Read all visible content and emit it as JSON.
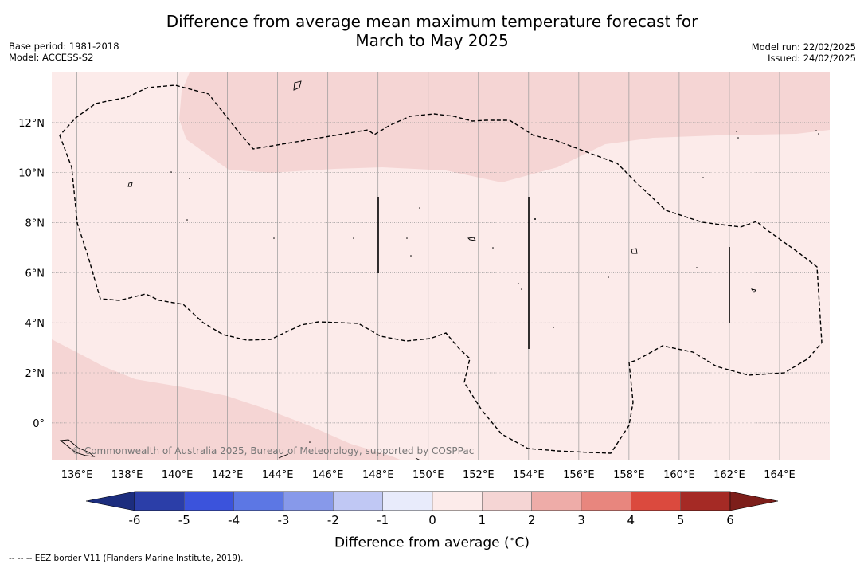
{
  "header": {
    "title_line1": "Difference from average mean maximum temperature forecast for",
    "title_line2": "March to May 2025",
    "base_period": "Base period: 1981-2018",
    "model": "Model: ACCESS-S2",
    "model_run": "Model run: 22/02/2025",
    "issued": "Issued: 24/02/2025"
  },
  "map": {
    "lon_range": [
      135,
      166
    ],
    "lat_range": [
      -1.5,
      14
    ],
    "lon_ticks": [
      "136°E",
      "138°E",
      "140°E",
      "142°E",
      "144°E",
      "146°E",
      "148°E",
      "150°E",
      "152°E",
      "154°E",
      "156°E",
      "158°E",
      "160°E",
      "162°E",
      "164°E"
    ],
    "lat_ticks": [
      "12°N",
      "10°N",
      "8°N",
      "6°N",
      "4°N",
      "2°N",
      "0°"
    ],
    "credit": "© Commonwealth of Australia 2025, Bureau of Meteorology, supported by COSPPac",
    "colors": {
      "anomaly_0_1": "#fcebea",
      "anomaly_1_2": "#f5d5d4",
      "eez_border": "#000000",
      "gridline": "#999999"
    }
  },
  "colorbar": {
    "labels": [
      "-6",
      "-5",
      "-4",
      "-3",
      "-2",
      "-1",
      "0",
      "1",
      "2",
      "3",
      "4",
      "5",
      "6"
    ],
    "colors": [
      "#2b3ea8",
      "#3b53dc",
      "#5c77e4",
      "#8799ea",
      "#c0c8f4",
      "#e8ebfb",
      "#ffffff",
      "#fcebea",
      "#f5d5d4",
      "#eeaca8",
      "#e8867e",
      "#db4a3e",
      "#a52a25"
    ],
    "low_extend_color": "#1c2d7e",
    "high_extend_color": "#7d1e1a",
    "title": "Difference from average (",
    "title_unit": "C)",
    "title_degree": "∘"
  },
  "footnote": "-- -- -- EEZ border V11 (Flanders Marine Institute, 2019)."
}
